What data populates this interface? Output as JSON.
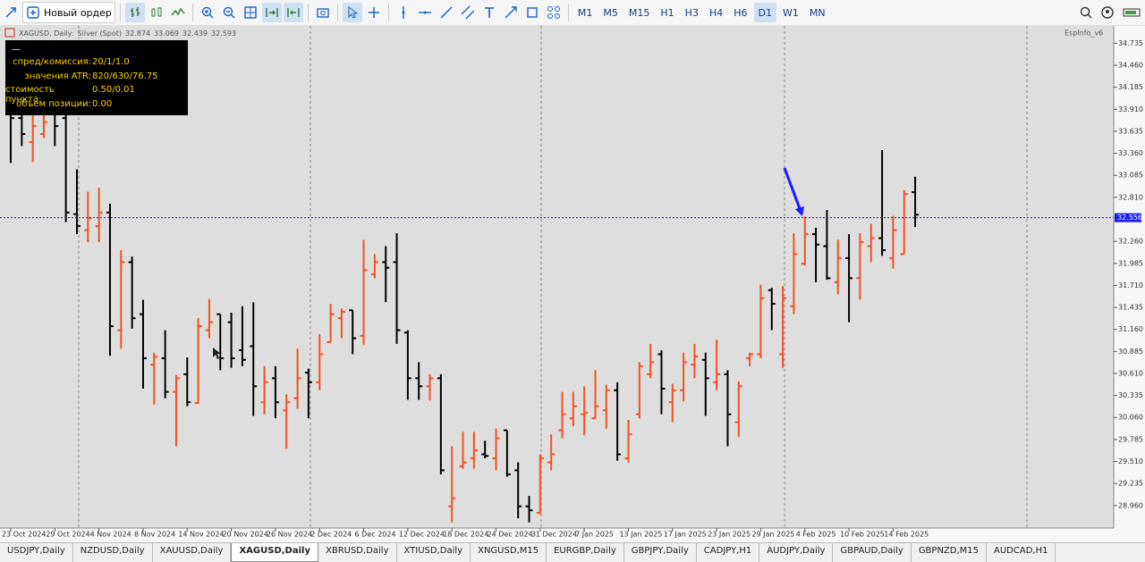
{
  "toolbar": {
    "new_order": "Новый ордер",
    "timeframes": [
      "M1",
      "M5",
      "M15",
      "H1",
      "H3",
      "H4",
      "H6",
      "D1",
      "W1",
      "MN"
    ],
    "active_timeframe": 7
  },
  "chart_header": {
    "symbol": "XAGUSD, Daily:",
    "description": "Silver (Spot)"
  },
  "info_panel": {
    "title": "—",
    "rows": [
      [
        "спред/комиссия:",
        "20/1/1.0"
      ],
      [
        "значения ATR:",
        "820/630/76.75"
      ],
      [
        "стоимость пункта:",
        "0.50/0.01"
      ],
      [
        "объем позиции:",
        "0.00"
      ]
    ]
  },
  "indicator_label": "EspInfo_v6",
  "chart_data": {
    "type": "ohlc",
    "categories": [
      "23 Oct 2024",
      null,
      null,
      null,
      "29 Oct 2024",
      null,
      null,
      null,
      "4 Nov 2024",
      null,
      null,
      null,
      "8 Nov 2024",
      null,
      null,
      null,
      "14 Nov 2024",
      null,
      null,
      null,
      "20 Nov 2024",
      null,
      null,
      null,
      "26 Nov 2024",
      null,
      null,
      null,
      "2 Dec 2024",
      null,
      null,
      null,
      "6 Dec 2024",
      null,
      null,
      null,
      "12 Dec 2024",
      null,
      null,
      null,
      "18 Dec 2024",
      null,
      null,
      null,
      "24 Dec 2024",
      null,
      null,
      null,
      "31 Dec 2024",
      null,
      null,
      null,
      "7 Jan 2025",
      null,
      null,
      null,
      "13 Jan 2025",
      null,
      null,
      null,
      "17 Jan 2025",
      null,
      null,
      null,
      "23 Jan 2025",
      null,
      null,
      null,
      "29 Jan 2025",
      null,
      null,
      null,
      "4 Feb 2025",
      null,
      null,
      null,
      "10 Feb 2025",
      null,
      null,
      null,
      "14 Feb 2025",
      null,
      null
    ],
    "open": [
      33.85,
      33.8,
      33.5,
      33.6,
      33.9,
      33.8,
      32.6,
      32.4,
      32.45,
      32.62,
      31.15,
      32.0,
      31.35,
      30.72,
      30.8,
      30.38,
      30.6,
      30.24,
      31.15,
      31.35,
      31.25,
      30.9,
      30.95,
      30.25,
      30.55,
      30.15,
      30.3,
      30.62,
      30.5,
      31.0,
      31.3,
      31.4,
      31.08,
      31.85,
      32.0,
      32.0,
      31.12,
      30.55,
      30.45,
      30.55,
      28.95,
      29.45,
      29.55,
      29.6,
      29.55,
      29.9,
      29.4,
      28.95,
      28.87,
      29.5,
      29.9,
      30.05,
      30.1,
      30.05,
      30.15,
      30.4,
      29.55,
      30.1,
      30.6,
      30.85,
      30.25,
      30.4,
      30.72,
      30.78,
      30.5,
      30.6,
      30.0,
      30.8,
      30.85,
      31.65,
      30.85,
      31.45,
      31.98,
      32.35,
      32.2,
      31.75,
      32.05,
      31.8,
      32.2,
      32.3,
      32.05,
      32.1,
      32.874
    ],
    "high": [
      33.95,
      33.95,
      33.85,
      33.95,
      34.0,
      34.0,
      33.16,
      32.88,
      32.93,
      32.73,
      32.15,
      32.07,
      31.53,
      30.87,
      31.15,
      30.59,
      30.81,
      31.3,
      31.54,
      31.35,
      31.37,
      31.45,
      31.5,
      30.7,
      30.7,
      30.35,
      30.92,
      30.67,
      31.1,
      31.48,
      31.42,
      31.4,
      32.28,
      32.1,
      32.2,
      32.36,
      31.15,
      30.75,
      30.6,
      30.6,
      29.7,
      29.88,
      29.88,
      29.77,
      29.92,
      29.9,
      29.5,
      29.08,
      29.6,
      29.85,
      30.38,
      30.38,
      30.45,
      30.65,
      30.47,
      30.5,
      30.03,
      30.75,
      30.98,
      30.9,
      30.48,
      30.87,
      30.98,
      30.87,
      31.03,
      30.65,
      30.51,
      30.87,
      31.72,
      31.68,
      31.7,
      32.36,
      32.57,
      32.43,
      32.65,
      32.28,
      32.35,
      32.36,
      32.48,
      33.4,
      32.58,
      32.9,
      33.069
    ],
    "low": [
      33.24,
      33.45,
      33.25,
      33.55,
      33.45,
      32.5,
      32.35,
      32.25,
      32.25,
      30.83,
      30.92,
      31.17,
      30.42,
      30.22,
      30.3,
      29.7,
      30.2,
      30.23,
      31.05,
      30.65,
      30.68,
      30.7,
      30.08,
      30.1,
      30.05,
      29.67,
      30.17,
      30.05,
      30.4,
      31.0,
      31.05,
      30.85,
      30.97,
      31.8,
      31.5,
      30.98,
      30.28,
      30.28,
      30.27,
      29.35,
      28.75,
      29.42,
      29.42,
      29.55,
      29.4,
      29.32,
      28.8,
      28.75,
      28.85,
      29.4,
      29.8,
      29.95,
      29.84,
      30.05,
      29.92,
      29.52,
      29.5,
      30.05,
      30.55,
      30.1,
      30.0,
      30.26,
      30.55,
      30.08,
      30.4,
      29.7,
      29.82,
      30.7,
      30.8,
      31.15,
      30.68,
      31.35,
      31.96,
      31.75,
      31.78,
      31.6,
      31.25,
      31.53,
      32.0,
      32.08,
      31.92,
      32.1,
      32.439
    ],
    "close": [
      33.8,
      33.6,
      33.7,
      33.75,
      33.7,
      32.62,
      32.45,
      32.55,
      32.62,
      31.2,
      32.0,
      31.3,
      30.8,
      30.82,
      30.38,
      30.55,
      30.25,
      31.2,
      31.25,
      30.8,
      30.8,
      30.78,
      30.45,
      30.5,
      30.25,
      30.25,
      30.55,
      30.5,
      30.85,
      31.35,
      31.38,
      31.05,
      31.9,
      32.0,
      31.93,
      31.15,
      30.55,
      30.45,
      30.55,
      29.4,
      29.05,
      29.5,
      29.65,
      29.58,
      29.8,
      29.35,
      28.95,
      28.9,
      29.55,
      29.6,
      30.1,
      30.2,
      30.12,
      30.2,
      30.4,
      29.6,
      29.85,
      30.7,
      30.75,
      30.42,
      30.4,
      30.75,
      30.82,
      30.55,
      30.6,
      30.1,
      30.45,
      30.85,
      31.55,
      31.48,
      31.55,
      32.1,
      32.35,
      32.22,
      31.8,
      32.05,
      31.8,
      32.25,
      32.3,
      32.15,
      32.4,
      32.85,
      32.593
    ],
    "up_color": "#f4511e",
    "down_color": "#000000",
    "ylim": [
      28.69,
      34.94
    ],
    "yticks": [
      {
        "value": 34.735,
        "label": "34.735"
      },
      {
        "value": 34.46,
        "label": "34.460"
      },
      {
        "value": 34.185,
        "label": "34.185"
      },
      {
        "value": 33.91,
        "label": "33.910"
      },
      {
        "value": 33.635,
        "label": "33.635"
      },
      {
        "value": 33.36,
        "label": "33.360"
      },
      {
        "value": 33.085,
        "label": "33.085"
      },
      {
        "value": 32.81,
        "label": "32.810"
      },
      {
        "value": 32.26,
        "label": "32.260"
      },
      {
        "value": 31.985,
        "label": "31.985"
      },
      {
        "value": 31.71,
        "label": "31.710"
      },
      {
        "value": 31.435,
        "label": "31.435"
      },
      {
        "value": 31.16,
        "label": "31.160"
      },
      {
        "value": 30.885,
        "label": "30.885"
      },
      {
        "value": 30.61,
        "label": "30.610"
      },
      {
        "value": 30.335,
        "label": "30.335"
      },
      {
        "value": 30.06,
        "label": "30.060"
      },
      {
        "value": 29.785,
        "label": "29.785"
      },
      {
        "value": 29.51,
        "label": "29.510"
      },
      {
        "value": 29.235,
        "label": "29.235"
      },
      {
        "value": 28.96,
        "label": "28.960"
      }
    ],
    "bid_line": 32.556,
    "bid_color": "#1a1aff",
    "grid": false
  },
  "tabs": [
    "USDJPY,Daily",
    "NZDUSD,Daily",
    "XAUUSD,Daily",
    "XAGUSD,Daily",
    "XBRUSD,Daily",
    "XTIUSD,Daily",
    "XNGUSD,M15",
    "EURGBP,Daily",
    "GBPJPY,Daily",
    "CADJPY,H1",
    "AUDJPY,Daily",
    "GBPAUD,Daily",
    "GBPNZD,M15",
    "AUDCAD,H1"
  ],
  "active_tab": 3
}
